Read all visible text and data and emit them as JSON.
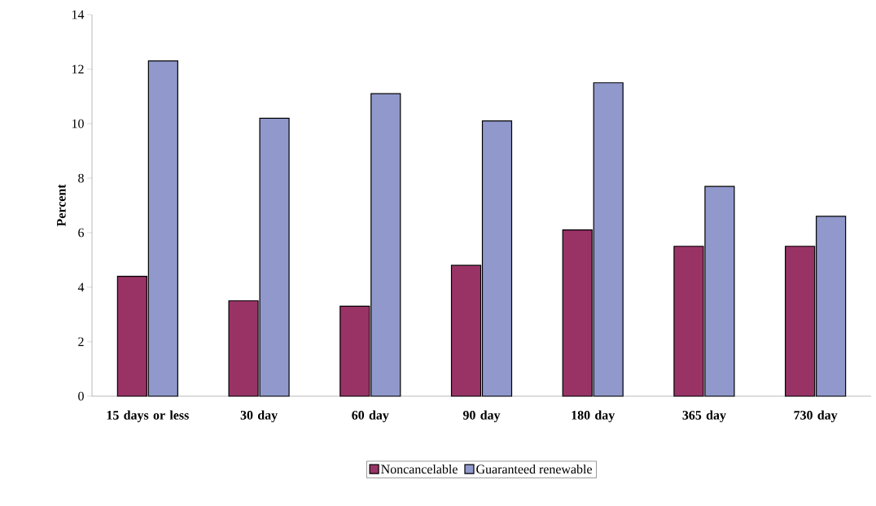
{
  "chart_data": {
    "type": "bar",
    "ylabel": "Percent",
    "categories": [
      "15 days or less",
      "30 day",
      "60 day",
      "90 day",
      "180 day",
      "365 day",
      "730 day"
    ],
    "series": [
      {
        "name": "Noncancelable",
        "color": "#993366",
        "values": [
          4.4,
          3.5,
          3.3,
          4.8,
          6.1,
          5.5,
          5.5
        ]
      },
      {
        "name": "Guaranteed renewable",
        "color": "#9098cc",
        "values": [
          12.3,
          10.2,
          11.1,
          10.1,
          11.5,
          7.7,
          6.6
        ]
      }
    ],
    "ylim": [
      0,
      14
    ],
    "yticks": [
      0,
      2,
      4,
      6,
      8,
      10,
      12,
      14
    ],
    "grid": false,
    "legend": "bottom"
  }
}
